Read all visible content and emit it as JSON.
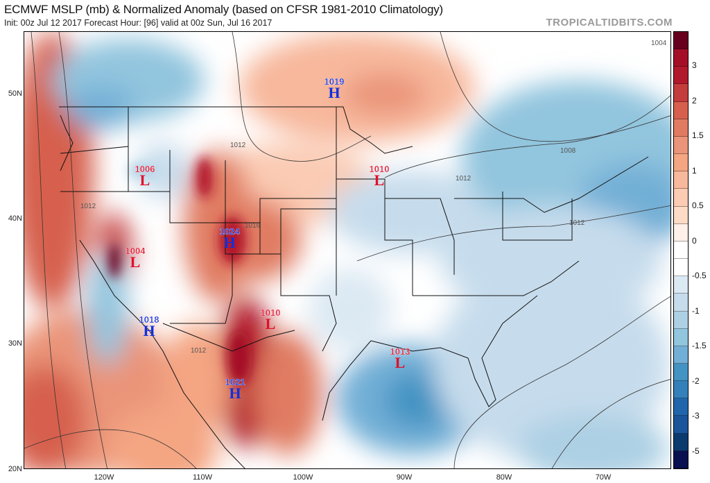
{
  "header": {
    "title": "ECMWF MSLP (mb) & Normalized Anomaly (based on CFSR 1981-2010 Climatology)",
    "subtitle": "Init: 00z Jul 12 2017   Forecast Hour: [96]   valid at 00z Sun, Jul 16 2017",
    "brand": "TROPICALTIDBITS.COM"
  },
  "axes": {
    "lat": [
      "50N",
      "40N",
      "30N",
      "20N"
    ],
    "lon": [
      "120W",
      "110W",
      "100W",
      "90W",
      "80W",
      "70W"
    ]
  },
  "centers": [
    {
      "type": "H",
      "value": "1019"
    },
    {
      "type": "L",
      "value": "1006"
    },
    {
      "type": "L",
      "value": "1010"
    },
    {
      "type": "L",
      "value": "1004"
    },
    {
      "type": "H",
      "value": "1024"
    },
    {
      "type": "H",
      "value": "1018"
    },
    {
      "type": "L",
      "value": "1010"
    },
    {
      "type": "L",
      "value": "1013"
    },
    {
      "type": "H",
      "value": "1021"
    }
  ],
  "contour_labels": [
    "1004",
    "1012",
    "1012",
    "1016",
    "1008",
    "1012",
    "1012",
    "1012"
  ],
  "colorbar": {
    "labels": [
      "3",
      "2",
      "1.5",
      "1",
      "0.5",
      "0",
      "-0.5",
      "-1",
      "-1.5",
      "-2",
      "-3",
      "-5"
    ],
    "colors": [
      "#67001f",
      "#a50f26",
      "#b2182b",
      "#c43c3c",
      "#d6604d",
      "#e07b62",
      "#ea9479",
      "#f4a582",
      "#f7b89c",
      "#fbcbb3",
      "#fddbc7",
      "#fff0ea",
      "#ffffff",
      "#ffffff",
      "#dbe9f3",
      "#c6dcec",
      "#add0e4",
      "#92c5de",
      "#72afd6",
      "#4393c3",
      "#3480bb",
      "#2166ac",
      "#1a549a",
      "#0b3a6e",
      "#08104f"
    ]
  }
}
